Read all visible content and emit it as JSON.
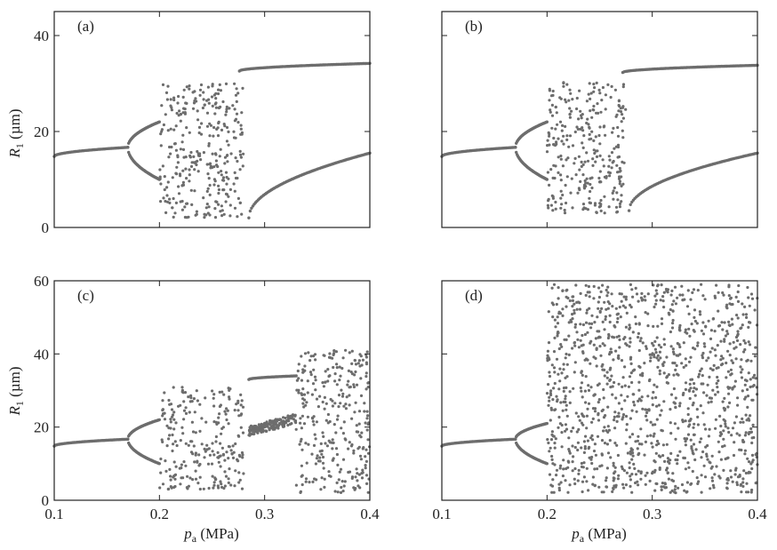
{
  "figure": {
    "x_axis_label": "p",
    "x_axis_label_sub": "a",
    "x_axis_label_unit": " (MPa)",
    "y_axis_label": "R",
    "y_axis_label_sub": "1",
    "y_axis_label_unit": " (µm)",
    "point_color": "#6d6d6d"
  },
  "chart_data": [
    {
      "type": "scatter",
      "panel_label": "(a)",
      "xlim": [
        0.1,
        0.4
      ],
      "ylim": [
        0,
        45
      ],
      "xticks": [
        0.1,
        0.2,
        0.3,
        0.4
      ],
      "yticks": [
        0,
        20,
        40
      ],
      "x_tick_labels_shown": false,
      "y_tick_labels_shown": true,
      "regions": [
        {
          "kind": "line",
          "x": [
            0.1,
            0.17
          ],
          "y": [
            14.8,
            16.7
          ]
        },
        {
          "kind": "line",
          "x": [
            0.17,
            0.2
          ],
          "y": [
            16.7,
            22.0
          ]
        },
        {
          "kind": "line",
          "x": [
            0.17,
            0.2
          ],
          "y": [
            16.7,
            10.0
          ]
        },
        {
          "kind": "cloud",
          "x": [
            0.2,
            0.28
          ],
          "y": [
            2,
            30
          ]
        },
        {
          "kind": "line",
          "x": [
            0.276,
            0.4
          ],
          "y": [
            32.6,
            34.2
          ]
        },
        {
          "kind": "curve",
          "x": [
            0.285,
            0.4
          ],
          "y": [
            2.0,
            15.5
          ]
        }
      ]
    },
    {
      "type": "scatter",
      "panel_label": "(b)",
      "xlim": [
        0.1,
        0.4
      ],
      "ylim": [
        0,
        45
      ],
      "xticks": [
        0.1,
        0.2,
        0.3,
        0.4
      ],
      "yticks": [
        0,
        20,
        40
      ],
      "x_tick_labels_shown": false,
      "y_tick_labels_shown": false,
      "regions": [
        {
          "kind": "line",
          "x": [
            0.1,
            0.17
          ],
          "y": [
            14.8,
            16.7
          ]
        },
        {
          "kind": "line",
          "x": [
            0.17,
            0.2
          ],
          "y": [
            16.7,
            22.0
          ]
        },
        {
          "kind": "line",
          "x": [
            0.17,
            0.2
          ],
          "y": [
            16.7,
            10.0
          ]
        },
        {
          "kind": "cloud",
          "x": [
            0.2,
            0.275
          ],
          "y": [
            3,
            31
          ]
        },
        {
          "kind": "line",
          "x": [
            0.272,
            0.4
          ],
          "y": [
            32.3,
            33.8
          ]
        },
        {
          "kind": "curve",
          "x": [
            0.278,
            0.4
          ],
          "y": [
            3.5,
            15.5
          ]
        }
      ]
    },
    {
      "type": "scatter",
      "panel_label": "(c)",
      "xlim": [
        0.1,
        0.4
      ],
      "ylim": [
        0,
        60
      ],
      "xticks": [
        0.1,
        0.2,
        0.3,
        0.4
      ],
      "yticks": [
        0,
        20,
        40,
        60
      ],
      "x_tick_labels": [
        "0.1",
        "0.2",
        "0.3",
        "0.4"
      ],
      "y_tick_labels_shown": true,
      "regions": [
        {
          "kind": "line",
          "x": [
            0.1,
            0.17
          ],
          "y": [
            14.8,
            16.7
          ]
        },
        {
          "kind": "line",
          "x": [
            0.17,
            0.2
          ],
          "y": [
            16.7,
            22.0
          ]
        },
        {
          "kind": "line",
          "x": [
            0.17,
            0.2
          ],
          "y": [
            16.7,
            10.0
          ]
        },
        {
          "kind": "cloud",
          "x": [
            0.2,
            0.28
          ],
          "y": [
            3,
            31
          ]
        },
        {
          "kind": "line",
          "x": [
            0.285,
            0.33
          ],
          "y": [
            33.0,
            34.0
          ]
        },
        {
          "kind": "band",
          "x": [
            0.285,
            0.33
          ],
          "y": [
            16.0,
            24.0
          ]
        },
        {
          "kind": "cloud",
          "x": [
            0.33,
            0.4
          ],
          "y": [
            2,
            41
          ]
        }
      ]
    },
    {
      "type": "scatter",
      "panel_label": "(d)",
      "xlim": [
        0.1,
        0.4
      ],
      "ylim": [
        0,
        60
      ],
      "xticks": [
        0.1,
        0.2,
        0.3,
        0.4
      ],
      "yticks": [
        0,
        20,
        40,
        60
      ],
      "x_tick_labels": [
        "0.1",
        "0.2",
        "0.3",
        "0.4"
      ],
      "y_tick_labels_shown": false,
      "regions": [
        {
          "kind": "line",
          "x": [
            0.1,
            0.17
          ],
          "y": [
            14.8,
            16.7
          ]
        },
        {
          "kind": "line",
          "x": [
            0.17,
            0.2
          ],
          "y": [
            16.7,
            21.0
          ]
        },
        {
          "kind": "line",
          "x": [
            0.17,
            0.2
          ],
          "y": [
            16.7,
            10.0
          ]
        },
        {
          "kind": "cloud",
          "x": [
            0.2,
            0.4
          ],
          "y": [
            2,
            59
          ]
        }
      ]
    }
  ]
}
